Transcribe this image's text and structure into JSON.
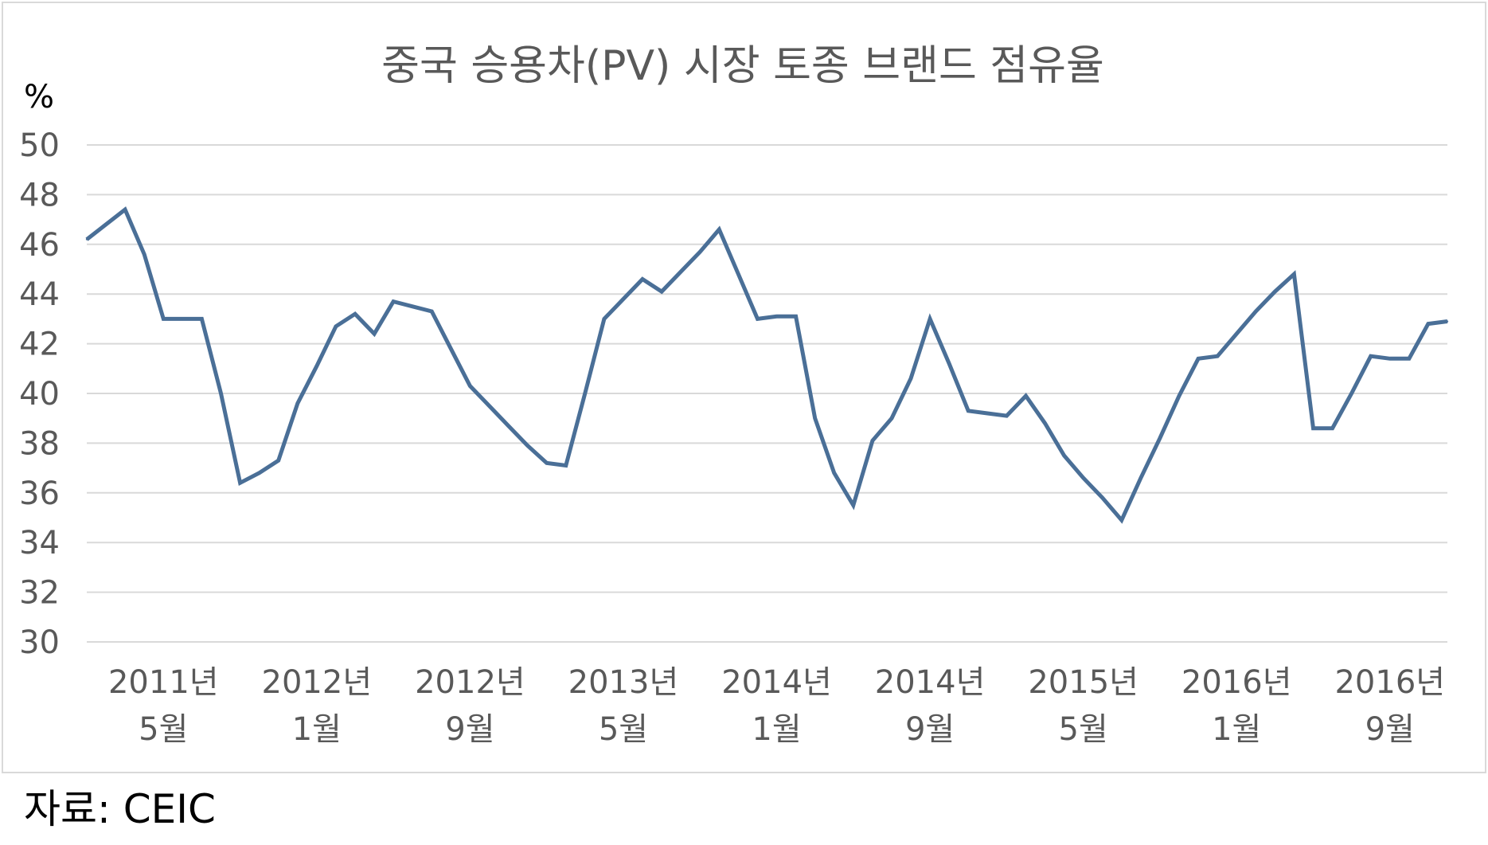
{
  "chart_data": {
    "type": "line",
    "title": "중국 승용차(PV) 시장 토종 브랜드 점유율",
    "yunit": "%",
    "ylim": [
      30,
      50
    ],
    "yticks": [
      30,
      32,
      34,
      36,
      38,
      40,
      42,
      44,
      46,
      48,
      50
    ],
    "grid": true,
    "xlim": [
      "2011-01",
      "2016-12"
    ],
    "xticks": [
      {
        "month": "2011-05",
        "year": "2011년",
        "mon": "5월"
      },
      {
        "month": "2012-01",
        "year": "2012년",
        "mon": "1월"
      },
      {
        "month": "2012-09",
        "year": "2012년",
        "mon": "9월"
      },
      {
        "month": "2013-05",
        "year": "2013년",
        "mon": "5월"
      },
      {
        "month": "2014-01",
        "year": "2014년",
        "mon": "1월"
      },
      {
        "month": "2014-09",
        "year": "2014년",
        "mon": "9월"
      },
      {
        "month": "2015-05",
        "year": "2015년",
        "mon": "5월"
      },
      {
        "month": "2016-01",
        "year": "2016년",
        "mon": "1월"
      },
      {
        "month": "2016-09",
        "year": "2016년",
        "mon": "9월"
      }
    ],
    "series": [
      {
        "color": "#4a6f97",
        "points": [
          {
            "x": "2011-01",
            "y": 46.2
          },
          {
            "x": "2011-03",
            "y": 47.4
          },
          {
            "x": "2011-04",
            "y": 45.6
          },
          {
            "x": "2011-05",
            "y": 43.0
          },
          {
            "x": "2011-06",
            "y": 43.0
          },
          {
            "x": "2011-07",
            "y": 43.0
          },
          {
            "x": "2011-08",
            "y": 40.0
          },
          {
            "x": "2011-09",
            "y": 36.4
          },
          {
            "x": "2011-10",
            "y": 36.8
          },
          {
            "x": "2011-11",
            "y": 37.3
          },
          {
            "x": "2011-12",
            "y": 39.6
          },
          {
            "x": "2012-01",
            "y": 41.1
          },
          {
            "x": "2012-02",
            "y": 42.7
          },
          {
            "x": "2012-03",
            "y": 43.2
          },
          {
            "x": "2012-04",
            "y": 42.4
          },
          {
            "x": "2012-05",
            "y": 43.7
          },
          {
            "x": "2012-06",
            "y": 43.5
          },
          {
            "x": "2012-07",
            "y": 43.3
          },
          {
            "x": "2012-08",
            "y": 41.8
          },
          {
            "x": "2012-09",
            "y": 40.3
          },
          {
            "x": "2012-10",
            "y": 39.5
          },
          {
            "x": "2012-11",
            "y": 38.7
          },
          {
            "x": "2012-12",
            "y": 37.9
          },
          {
            "x": "2013-01",
            "y": 37.2
          },
          {
            "x": "2013-02",
            "y": 37.1
          },
          {
            "x": "2013-03",
            "y": 40.0
          },
          {
            "x": "2013-04",
            "y": 43.0
          },
          {
            "x": "2013-05",
            "y": 43.8
          },
          {
            "x": "2013-06",
            "y": 44.6
          },
          {
            "x": "2013-07",
            "y": 44.1
          },
          {
            "x": "2013-08",
            "y": 44.9
          },
          {
            "x": "2013-09",
            "y": 45.7
          },
          {
            "x": "2013-10",
            "y": 46.6
          },
          {
            "x": "2013-11",
            "y": 44.8
          },
          {
            "x": "2013-12",
            "y": 43.0
          },
          {
            "x": "2014-01",
            "y": 43.1
          },
          {
            "x": "2014-02",
            "y": 43.1
          },
          {
            "x": "2014-03",
            "y": 39.0
          },
          {
            "x": "2014-04",
            "y": 36.8
          },
          {
            "x": "2014-05",
            "y": 35.5
          },
          {
            "x": "2014-06",
            "y": 38.1
          },
          {
            "x": "2014-07",
            "y": 39.0
          },
          {
            "x": "2014-08",
            "y": 40.6
          },
          {
            "x": "2014-09",
            "y": 43.0
          },
          {
            "x": "2014-10",
            "y": 41.2
          },
          {
            "x": "2014-11",
            "y": 39.3
          },
          {
            "x": "2014-12",
            "y": 39.2
          },
          {
            "x": "2015-01",
            "y": 39.1
          },
          {
            "x": "2015-02",
            "y": 39.9
          },
          {
            "x": "2015-03",
            "y": 38.8
          },
          {
            "x": "2015-04",
            "y": 37.5
          },
          {
            "x": "2015-05",
            "y": 36.6
          },
          {
            "x": "2015-06",
            "y": 35.8
          },
          {
            "x": "2015-07",
            "y": 34.9
          },
          {
            "x": "2015-08",
            "y": 36.6
          },
          {
            "x": "2015-09",
            "y": 38.2
          },
          {
            "x": "2015-10",
            "y": 39.9
          },
          {
            "x": "2015-11",
            "y": 41.4
          },
          {
            "x": "2015-12",
            "y": 41.5
          },
          {
            "x": "2016-01",
            "y": 42.4
          },
          {
            "x": "2016-02",
            "y": 43.3
          },
          {
            "x": "2016-03",
            "y": 44.1
          },
          {
            "x": "2016-04",
            "y": 44.8
          },
          {
            "x": "2016-05",
            "y": 38.6
          },
          {
            "x": "2016-06",
            "y": 38.6
          },
          {
            "x": "2016-07",
            "y": 40.0
          },
          {
            "x": "2016-08",
            "y": 41.5
          },
          {
            "x": "2016-09",
            "y": 41.4
          },
          {
            "x": "2016-10",
            "y": 41.4
          },
          {
            "x": "2016-11",
            "y": 42.8
          },
          {
            "x": "2016-12",
            "y": 42.9
          }
        ]
      }
    ],
    "source": "자료: CEIC"
  }
}
